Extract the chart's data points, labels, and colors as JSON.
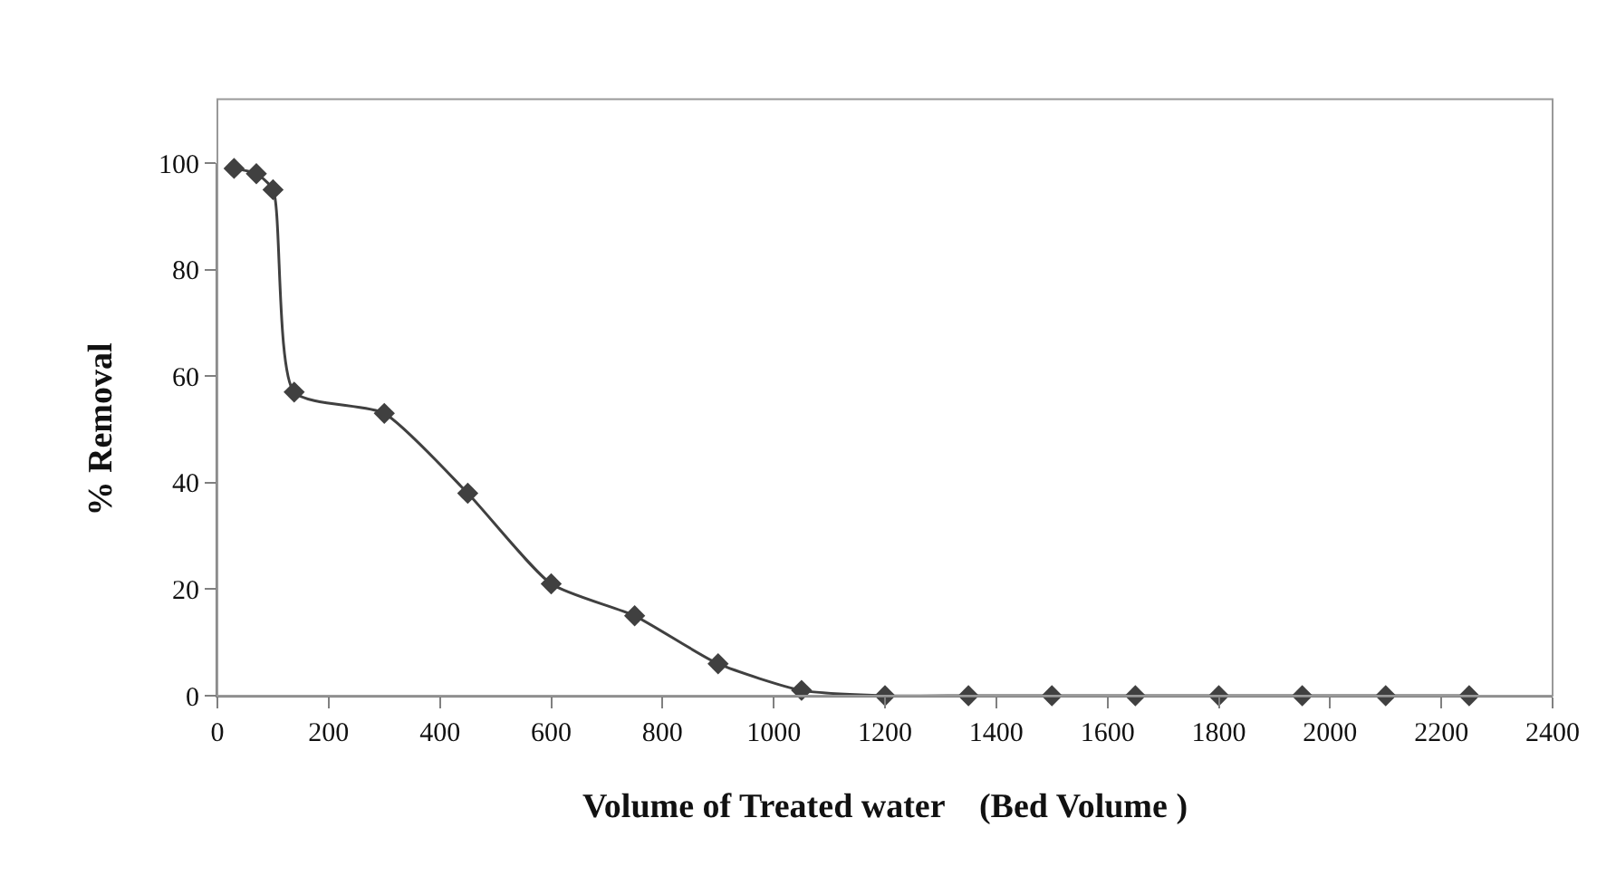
{
  "chart_data": {
    "type": "line",
    "xlabel": "Volume of Treated water    (Bed Volume )",
    "ylabel": "% Removal",
    "x": [
      30,
      70,
      100,
      138,
      300,
      450,
      600,
      750,
      900,
      1050,
      1200,
      1350,
      1500,
      1650,
      1800,
      1950,
      2100,
      2250
    ],
    "series": [
      {
        "color": "#404040",
        "values": [
          99,
          98,
          95,
          57,
          53,
          38,
          21,
          15,
          6,
          1,
          0,
          0,
          0,
          0,
          0,
          0,
          0,
          0
        ]
      }
    ],
    "xlim": [
      0,
      2400
    ],
    "xticks": [
      0,
      200,
      400,
      600,
      800,
      1000,
      1200,
      1400,
      1600,
      1800,
      2000,
      2200,
      2400
    ],
    "ylim": [
      0,
      100
    ],
    "yticks": [
      0,
      20,
      40,
      60,
      80,
      100
    ],
    "legend": false,
    "marker": "diamond",
    "line_style": "solid"
  }
}
